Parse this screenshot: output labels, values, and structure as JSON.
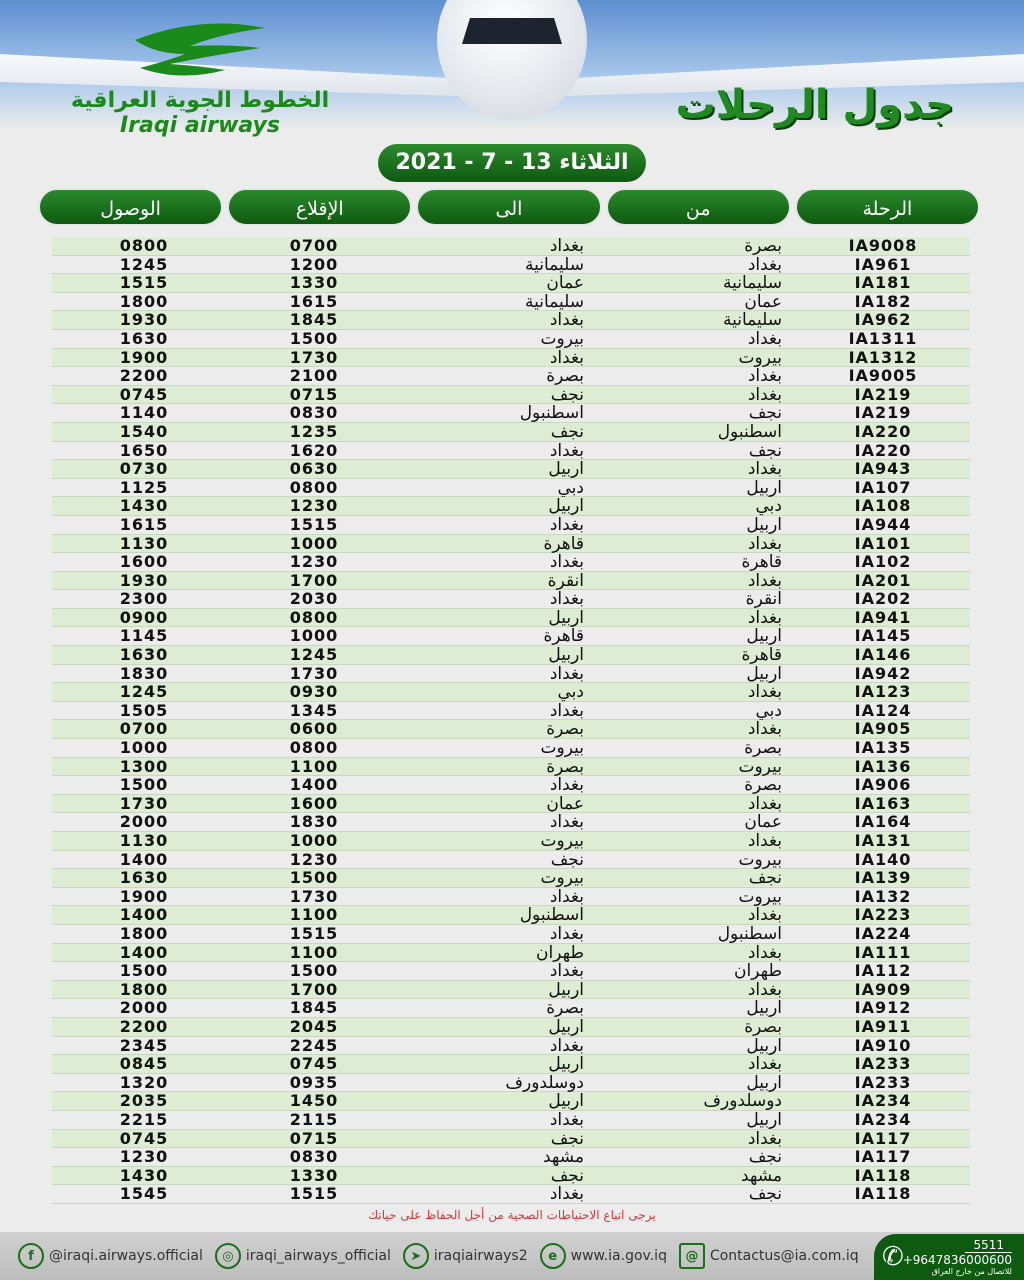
{
  "brand": {
    "name_ar": "الخطوط الجوية العراقية",
    "name_en": "Iraqi airways"
  },
  "title": "جدول الرحلات",
  "date": "الثلاثاء 13 - 7 - 2021",
  "columns": [
    "الرحلة",
    "من",
    "الى",
    "الإقلاع",
    "الوصول"
  ],
  "rows": [
    [
      "IA9008",
      "بصرة",
      "بغداد",
      "0700",
      "0800"
    ],
    [
      "IA961",
      "بغداد",
      "سليمانية",
      "1200",
      "1245"
    ],
    [
      "IA181",
      "سليمانية",
      "عمان",
      "1330",
      "1515"
    ],
    [
      "IA182",
      "عمان",
      "سليمانية",
      "1615",
      "1800"
    ],
    [
      "IA962",
      "سليمانية",
      "بغداد",
      "1845",
      "1930"
    ],
    [
      "IA1311",
      "بغداد",
      "بيروت",
      "1500",
      "1630"
    ],
    [
      "IA1312",
      "بيروت",
      "بغداد",
      "1730",
      "1900"
    ],
    [
      "IA9005",
      "بغداد",
      "بصرة",
      "2100",
      "2200"
    ],
    [
      "IA219",
      "بغداد",
      "نجف",
      "0715",
      "0745"
    ],
    [
      "IA219",
      "نجف",
      "اسطنبول",
      "0830",
      "1140"
    ],
    [
      "IA220",
      "اسطنبول",
      "نجف",
      "1235",
      "1540"
    ],
    [
      "IA220",
      "نجف",
      "بغداد",
      "1620",
      "1650"
    ],
    [
      "IA943",
      "بغداد",
      "اربيل",
      "0630",
      "0730"
    ],
    [
      "IA107",
      "اربيل",
      "دبي",
      "0800",
      "1125"
    ],
    [
      "IA108",
      "دبي",
      "اربيل",
      "1230",
      "1430"
    ],
    [
      "IA944",
      "اربيل",
      "بغداد",
      "1515",
      "1615"
    ],
    [
      "IA101",
      "بغداد",
      "قاهرة",
      "1000",
      "1130"
    ],
    [
      "IA102",
      "قاهرة",
      "بغداد",
      "1230",
      "1600"
    ],
    [
      "IA201",
      "بغداد",
      "انقرة",
      "1700",
      "1930"
    ],
    [
      "IA202",
      "انقرة",
      "بغداد",
      "2030",
      "2300"
    ],
    [
      "IA941",
      "بغداد",
      "اربيل",
      "0800",
      "0900"
    ],
    [
      "IA145",
      "اربيل",
      "قاهرة",
      "1000",
      "1145"
    ],
    [
      "IA146",
      "قاهرة",
      "اربيل",
      "1245",
      "1630"
    ],
    [
      "IA942",
      "اربيل",
      "بغداد",
      "1730",
      "1830"
    ],
    [
      "IA123",
      "بغداد",
      "دبي",
      "0930",
      "1245"
    ],
    [
      "IA124",
      "دبي",
      "بغداد",
      "1345",
      "1505"
    ],
    [
      "IA905",
      "بغداد",
      "بصرة",
      "0600",
      "0700"
    ],
    [
      "IA135",
      "بصرة",
      "بيروت",
      "0800",
      "1000"
    ],
    [
      "IA136",
      "بيروت",
      "بصرة",
      "1100",
      "1300"
    ],
    [
      "IA906",
      "بصرة",
      "بغداد",
      "1400",
      "1500"
    ],
    [
      "IA163",
      "بغداد",
      "عمان",
      "1600",
      "1730"
    ],
    [
      "IA164",
      "عمان",
      "بغداد",
      "1830",
      "2000"
    ],
    [
      "IA131",
      "بغداد",
      "بيروت",
      "1000",
      "1130"
    ],
    [
      "IA140",
      "بيروت",
      "نجف",
      "1230",
      "1400"
    ],
    [
      "IA139",
      "نجف",
      "بيروت",
      "1500",
      "1630"
    ],
    [
      "IA132",
      "بيروت",
      "بغداد",
      "1730",
      "1900"
    ],
    [
      "IA223",
      "بغداد",
      "اسطنبول",
      "1100",
      "1400"
    ],
    [
      "IA224",
      "اسطنبول",
      "بغداد",
      "1515",
      "1800"
    ],
    [
      "IA111",
      "بغداد",
      "طهران",
      "1100",
      "1400"
    ],
    [
      "IA112",
      "طهران",
      "بغداد",
      "1500",
      "1500"
    ],
    [
      "IA909",
      "بغداد",
      "اربيل",
      "1700",
      "1800"
    ],
    [
      "IA912",
      "اربيل",
      "بصرة",
      "1845",
      "2000"
    ],
    [
      "IA911",
      "بصرة",
      "اربيل",
      "2045",
      "2200"
    ],
    [
      "IA910",
      "اربيل",
      "بغداد",
      "2245",
      "2345"
    ],
    [
      "IA233",
      "بغداد",
      "اربيل",
      "0745",
      "0845"
    ],
    [
      "IA233",
      "اربيل",
      "دوسلدورف",
      "0935",
      "1320"
    ],
    [
      "IA234",
      "دوسلدورف",
      "اربيل",
      "1450",
      "2035"
    ],
    [
      "IA234",
      "اربيل",
      "بغداد",
      "2115",
      "2215"
    ],
    [
      "IA117",
      "بغداد",
      "نجف",
      "0715",
      "0745"
    ],
    [
      "IA117",
      "نجف",
      "مشهد",
      "0830",
      "1230"
    ],
    [
      "IA118",
      "مشهد",
      "نجف",
      "1330",
      "1430"
    ],
    [
      "IA118",
      "نجف",
      "بغداد",
      "1515",
      "1545"
    ]
  ],
  "note": "يرجى اتباع الاحتياطات الصحية من أجل الحفاظ على حياتك",
  "footer": {
    "facebook": "@iraqi.airways.official",
    "instagram": "iraqi_airways_official",
    "telegram": "iraqiairways2",
    "website": "www.ia.gov.iq",
    "email": "Contactus@ia.com.iq",
    "phone_short": "5511",
    "phone_intl": "+9647836000600",
    "phone_note": "للاتصال من خارج العراق"
  },
  "colors": {
    "green": "#0e5a10",
    "row_green": "#ddecd3",
    "note_red": "#d8343a"
  }
}
